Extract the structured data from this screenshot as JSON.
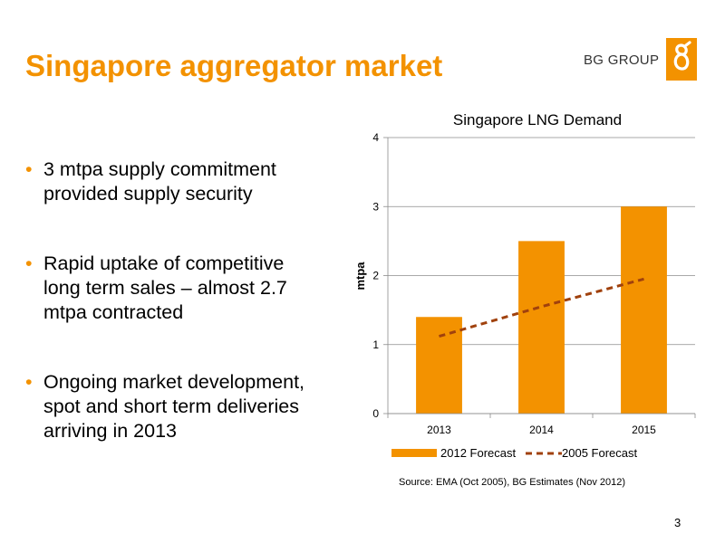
{
  "slide": {
    "title": "Singapore aggregator market",
    "brand_text": "BG GROUP",
    "page_number": "3",
    "source": "Source: EMA (Oct 2005), BG Estimates (Nov 2012)",
    "accent_color": "#f39200",
    "bullets": [
      "3 mtpa supply commitment provided supply security",
      "Rapid uptake of competitive long term sales – almost 2.7 mtpa contracted",
      "Ongoing market development, spot and short term deliveries arriving in 2013"
    ]
  },
  "chart_data": {
    "type": "bar",
    "title": "Singapore LNG Demand",
    "xlabel": "",
    "ylabel": "mtpa",
    "categories": [
      "2013",
      "2014",
      "2015"
    ],
    "ylim": [
      0,
      4
    ],
    "yticks": [
      0,
      1,
      2,
      3,
      4
    ],
    "grid": true,
    "legend_position": "bottom",
    "series": [
      {
        "name": "2012 Forecast",
        "type": "bar",
        "color": "#f39200",
        "values": [
          1.4,
          2.5,
          3.0
        ]
      },
      {
        "name": "2005 Forecast",
        "type": "line",
        "style": "dashed",
        "color": "#a0410d",
        "values": [
          1.12,
          1.55,
          1.95
        ]
      }
    ]
  }
}
